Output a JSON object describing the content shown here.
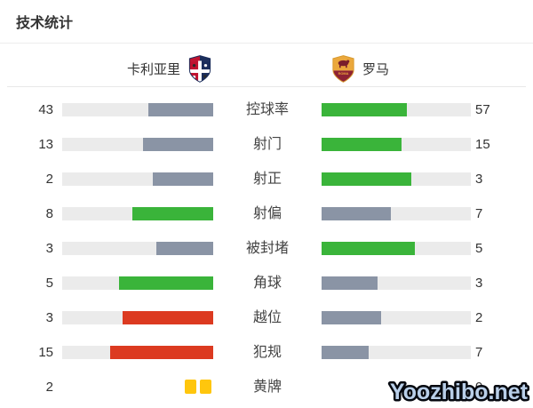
{
  "title": "技术统计",
  "header": {
    "home_team": "卡利亚里",
    "away_team": "罗马",
    "home_logo": "cagliari-crest",
    "away_logo": "roma-crest"
  },
  "watermark": "Yoozhibo.net",
  "colors": {
    "green": "#3ab43a",
    "gray": "#8a94a5",
    "red": "#dc3a20",
    "track": "#ebebeb",
    "card_yellow": "#ffc60d",
    "value_text": "#333333",
    "label_text": "#444444",
    "watermark_fill": "#b9cfe9",
    "watermark_stroke": "#05080f"
  },
  "stats": [
    {
      "label": "控球率",
      "home": 43,
      "away": 57,
      "home_style": "gray",
      "away_style": "green",
      "type": "bar"
    },
    {
      "label": "射门",
      "home": 13,
      "away": 15,
      "home_style": "gray",
      "away_style": "green",
      "type": "bar"
    },
    {
      "label": "射正",
      "home": 2,
      "away": 3,
      "home_style": "gray",
      "away_style": "green",
      "type": "bar"
    },
    {
      "label": "射偏",
      "home": 8,
      "away": 7,
      "home_style": "green",
      "away_style": "gray",
      "type": "bar"
    },
    {
      "label": "被封堵",
      "home": 3,
      "away": 5,
      "home_style": "gray",
      "away_style": "green",
      "type": "bar"
    },
    {
      "label": "角球",
      "home": 5,
      "away": 3,
      "home_style": "green",
      "away_style": "gray",
      "type": "bar"
    },
    {
      "label": "越位",
      "home": 3,
      "away": 2,
      "home_style": "red",
      "away_style": "gray",
      "type": "bar"
    },
    {
      "label": "犯规",
      "home": 15,
      "away": 7,
      "home_style": "red",
      "away_style": "gray",
      "type": "bar"
    },
    {
      "label": "黄牌",
      "home": 2,
      "away": 0,
      "type": "cards"
    }
  ],
  "chart_data": {
    "type": "bar",
    "title": "技术统计",
    "categories": [
      "控球率",
      "射门",
      "射正",
      "射偏",
      "被封堵",
      "角球",
      "越位",
      "犯规",
      "黄牌"
    ],
    "series": [
      {
        "name": "卡利亚里",
        "values": [
          43,
          13,
          2,
          8,
          3,
          5,
          3,
          15,
          2
        ]
      },
      {
        "name": "罗马",
        "values": [
          57,
          15,
          3,
          7,
          5,
          3,
          2,
          7,
          0
        ]
      }
    ],
    "layout": "horizontal mirrored bars growing from center; fill fraction = value / (home + away); yellow-cards row rendered as card icons instead of bars"
  }
}
